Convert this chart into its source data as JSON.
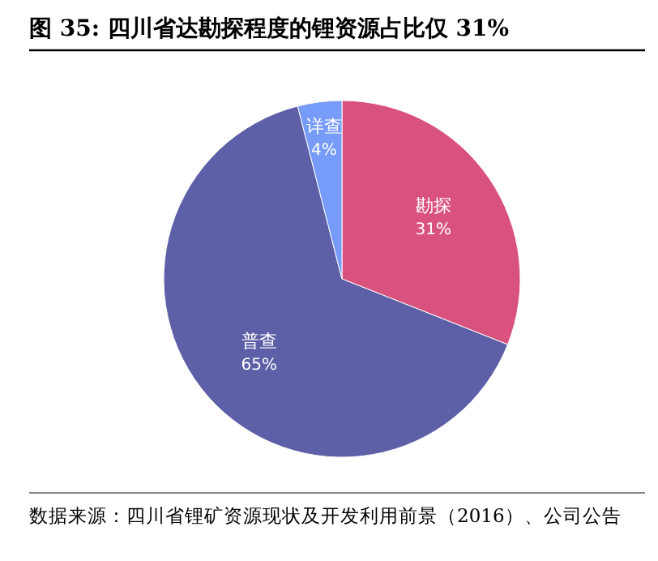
{
  "chart_data": {
    "type": "pie",
    "title": "图  35:  四川省达勘探程度的锂资源占比仅 31%",
    "categories": [
      "勘探",
      "普查",
      "详查"
    ],
    "values": [
      31,
      65,
      4
    ],
    "colors": [
      "#d9527e",
      "#5d5fa7",
      "#779bf8"
    ],
    "value_labels": [
      "31%",
      "65%",
      "4%"
    ],
    "annotations": [
      "数据来源：四川省锂矿资源现状及开发利用前景（2016）、公司公告"
    ]
  }
}
